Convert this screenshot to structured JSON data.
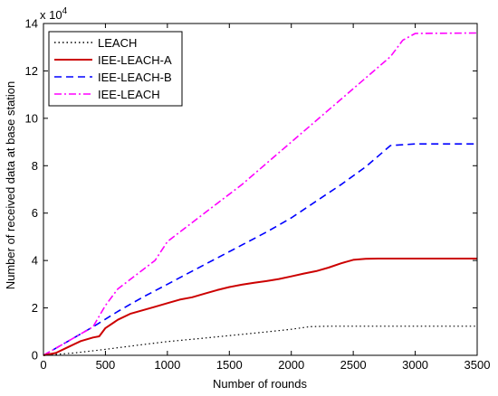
{
  "chart_data": {
    "type": "line",
    "title": "",
    "xlabel": "Number of rounds",
    "ylabel": "Number of received data at base station",
    "xlim": [
      0,
      3500
    ],
    "ylim": [
      0,
      140000
    ],
    "x_ticks": [
      0,
      500,
      1000,
      1500,
      2000,
      2500,
      3000,
      3500
    ],
    "y_ticks": [
      0,
      20000,
      40000,
      60000,
      80000,
      100000,
      120000,
      140000
    ],
    "x_tick_labels": [
      "0",
      "500",
      "1000",
      "1500",
      "2000",
      "2500",
      "3000",
      "3500"
    ],
    "y_tick_labels": [
      "0",
      "2",
      "4",
      "6",
      "8",
      "10",
      "12",
      "14"
    ],
    "y_exponent": {
      "base": "x 10",
      "power": "4"
    },
    "grid": false,
    "legend_position": "top-left",
    "series": [
      {
        "name": "LEACH",
        "color": "#000000",
        "style": "dotted",
        "x": [
          0,
          250,
          500,
          750,
          1000,
          1250,
          1500,
          1750,
          2000,
          2150,
          2300,
          2500,
          3000,
          3500
        ],
        "y": [
          0,
          1000,
          2500,
          4200,
          5800,
          7000,
          8300,
          9600,
          11000,
          12100,
          12300,
          12300,
          12300,
          12300
        ]
      },
      {
        "name": "IEE-LEACH-A",
        "color": "#cc0000",
        "style": "solid",
        "x": [
          0,
          100,
          200,
          300,
          400,
          450,
          500,
          600,
          700,
          800,
          900,
          1000,
          1100,
          1200,
          1300,
          1400,
          1500,
          1600,
          1700,
          1800,
          1900,
          2000,
          2100,
          2200,
          2300,
          2400,
          2500,
          2600,
          2700,
          3000,
          3500
        ],
        "y": [
          0,
          1000,
          3500,
          6000,
          7500,
          8000,
          11500,
          15000,
          17500,
          19000,
          20500,
          22000,
          23500,
          24500,
          26000,
          27500,
          28800,
          29800,
          30600,
          31300,
          32200,
          33300,
          34500,
          35500,
          37000,
          38800,
          40300,
          40700,
          40800,
          40800,
          40800
        ]
      },
      {
        "name": "IEE-LEACH-B",
        "color": "#0000ff",
        "style": "dashed",
        "x": [
          0,
          200,
          400,
          600,
          800,
          1000,
          1200,
          1400,
          1600,
          1800,
          2000,
          2200,
          2400,
          2600,
          2700,
          2800,
          3000,
          3500
        ],
        "y": [
          0,
          6000,
          12000,
          18500,
          24500,
          30000,
          35500,
          41000,
          46500,
          52000,
          58000,
          65000,
          72000,
          79500,
          84000,
          88500,
          89200,
          89200
        ]
      },
      {
        "name": "IEE-LEACH",
        "color": "#ff00ff",
        "style": "dashdot",
        "x": [
          0,
          200,
          400,
          500,
          600,
          800,
          900,
          1000,
          1200,
          1400,
          1600,
          1800,
          2000,
          2200,
          2400,
          2600,
          2800,
          2900,
          3000,
          3500
        ],
        "y": [
          0,
          6000,
          12000,
          21000,
          28000,
          36000,
          40000,
          48000,
          56000,
          64000,
          72000,
          81000,
          90000,
          99000,
          108000,
          117000,
          126000,
          133000,
          135800,
          136000
        ]
      }
    ]
  }
}
